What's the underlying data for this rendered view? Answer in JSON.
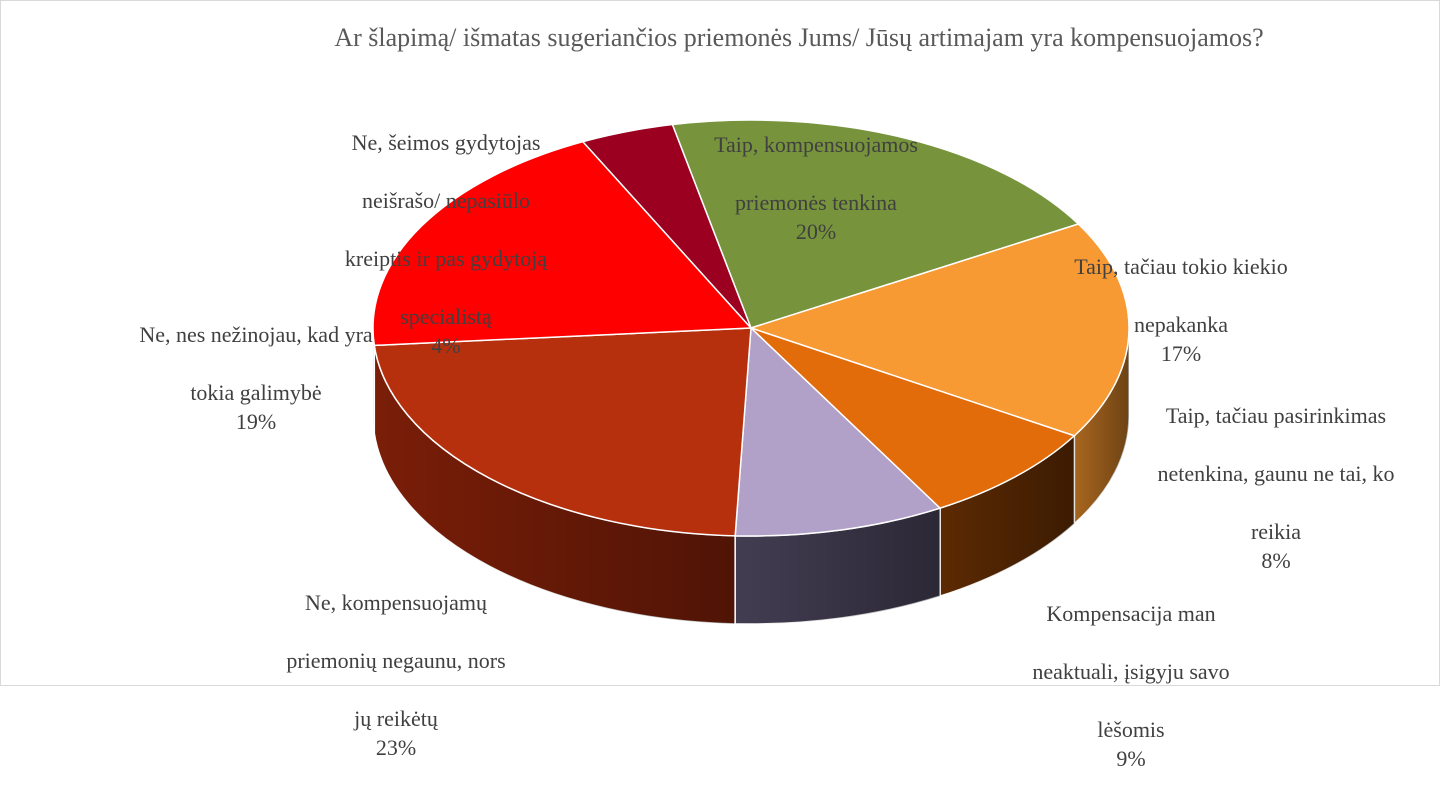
{
  "chart_data": {
    "type": "pie",
    "title": "Ar šlapimą/ išmatas sugeriančios priemonės Jums/ Jūsų artimajam yra kompensuojamos?",
    "slices": [
      {
        "label": "Taip, kompensuojamos priemonės tenkina",
        "label_lines": [
          "Taip, kompensuojamos",
          "priemonės tenkina"
        ],
        "value": 20,
        "value_label": "20%",
        "color": "#77933c",
        "side_color": "#55692a"
      },
      {
        "label": "Taip, tačiau tokio kiekio nepakanka",
        "label_lines": [
          "Taip, tačiau tokio kiekio",
          "nepakanka"
        ],
        "value": 17,
        "value_label": "17%",
        "color": "#f79a33",
        "side_color": "#a8661f"
      },
      {
        "label": "Taip, tačiau pasirinkimas netenkina, gaunu ne tai, ko reikia",
        "label_lines": [
          "Taip, tačiau pasirinkimas",
          "netenkina, gaunu ne tai, ko",
          "reikia"
        ],
        "value": 8,
        "value_label": "8%",
        "color": "#e26b0a",
        "side_color": "#5c2a02"
      },
      {
        "label": "Kompensacija man neaktuali, įsigyju savo lėšomis",
        "label_lines": [
          "Kompensacija man",
          "neaktuali, įsigyju savo",
          "lėšomis"
        ],
        "value": 9,
        "value_label": "9%",
        "color": "#b1a0c7",
        "side_color": "#433d52"
      },
      {
        "label": "Ne, kompensuojamų priemonių negaunu, nors jų reikėtų",
        "label_lines": [
          "Ne, kompensuojamų",
          "priemonių negaunu, nors",
          "jų reikėtų"
        ],
        "value": 23,
        "value_label": "23%",
        "color": "#b7300e",
        "side_color": "#7a1e08"
      },
      {
        "label": "Ne, nes nežinojau, kad yra tokia galimybė",
        "label_lines": [
          "Ne, nes nežinojau, kad yra",
          "tokia galimybė"
        ],
        "value": 19,
        "value_label": "19%",
        "color": "#ff0000",
        "side_color": "#b00000"
      },
      {
        "label": "Ne, šeimos gydytojas neišrašo/ nepasiūlo kreiptis ir pas gydytoją specialistą",
        "label_lines": [
          "Ne, šeimos gydytojas",
          "neišrašo/ nepasiūlo",
          "kreiptis ir pas gydytoją",
          "specialistą"
        ],
        "value": 4,
        "value_label": "4%",
        "color": "#9b0021",
        "side_color": "#5e0014"
      }
    ]
  }
}
